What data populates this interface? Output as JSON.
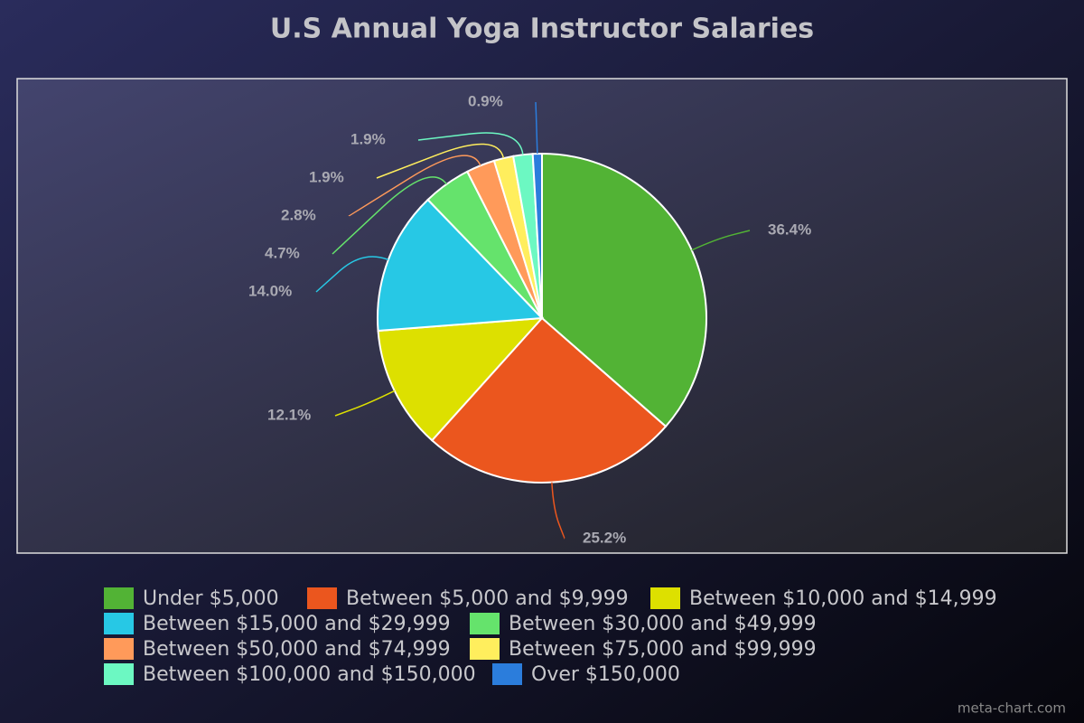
{
  "chart_data": {
    "type": "pie",
    "title": "U.S Annual Yoga Instructor Salaries",
    "categories": [
      "Under $5,000",
      "Between $5,000 and $9,999",
      "Between $10,000 and $14,999",
      "Between $15,000 and $29,999",
      "Between $30,000 and $49,999",
      "Between $50,000 and $74,999",
      "Between $75,000 and $99,999",
      "Between $100,000 and $150,000",
      "Over $150,000"
    ],
    "values": [
      36.4,
      25.2,
      12.1,
      14.0,
      4.7,
      2.8,
      1.9,
      1.9,
      0.9
    ],
    "value_labels": [
      "36.4%",
      "25.2%",
      "12.1%",
      "14.0%",
      "4.7%",
      "2.8%",
      "1.9%",
      "1.9%",
      "0.9%"
    ],
    "colors": [
      "#52b335",
      "#eb561e",
      "#dde000",
      "#27c8e5",
      "#65e36c",
      "#ff9a5a",
      "#ffee5d",
      "#6cf8c2",
      "#2b7ddc"
    ],
    "watermark": "meta-chart.com"
  }
}
